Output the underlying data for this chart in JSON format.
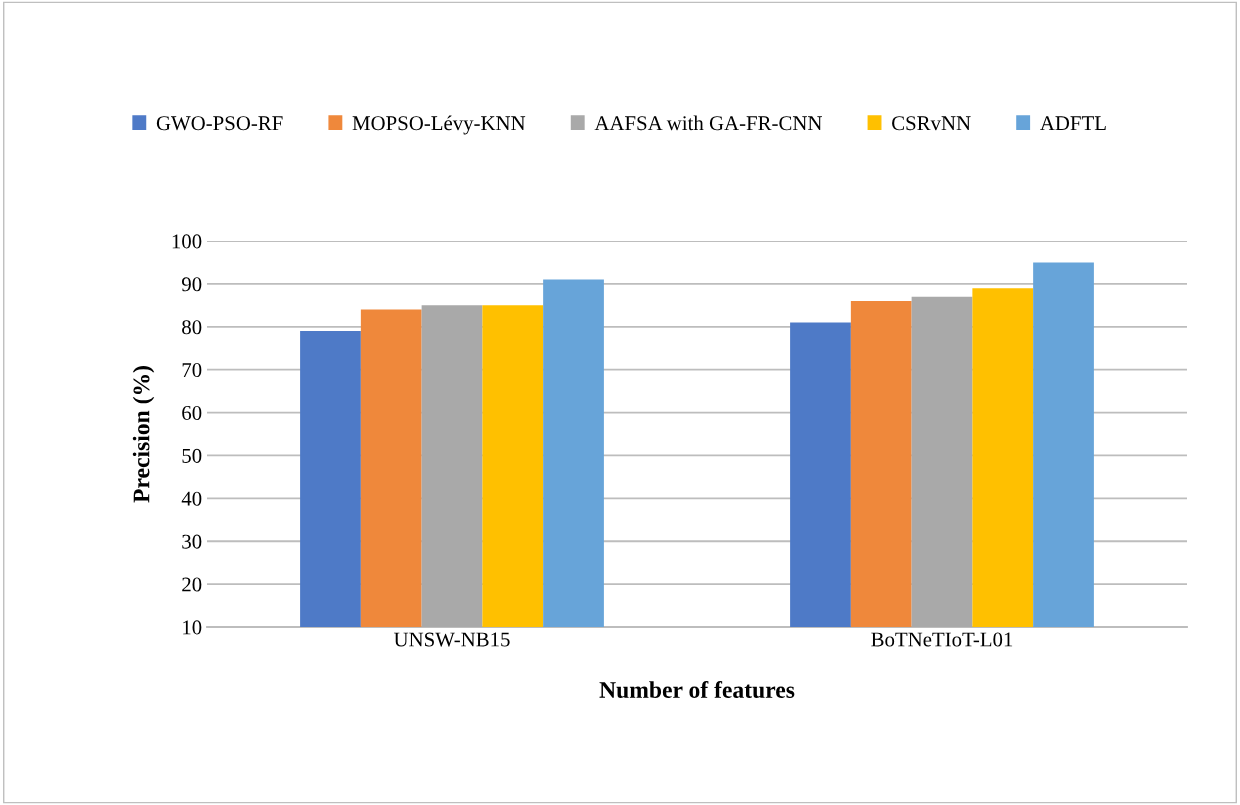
{
  "chart_data": {
    "type": "bar",
    "xlabel": "Number of features",
    "ylabel": "Precision (%)",
    "categories": [
      "UNSW-NB15",
      "BoTNeTIoT-L01"
    ],
    "series": [
      {
        "name": "GWO-PSO-RF",
        "color": "#4e7ac7",
        "values": [
          79,
          81
        ]
      },
      {
        "name": "MOPSO-Lévy-KNN",
        "color": "#ef883b",
        "values": [
          84,
          86
        ]
      },
      {
        "name": "AAFSA with GA-FR-CNN",
        "color": "#a9a9a9",
        "values": [
          85,
          87
        ]
      },
      {
        "name": "CSRvNN",
        "color": "#ffc000",
        "values": [
          85,
          89
        ]
      },
      {
        "name": "ADFTL",
        "color": "#67a4d9",
        "values": [
          91,
          95
        ]
      }
    ],
    "ylim": [
      10,
      100
    ],
    "yticks": [
      10,
      20,
      30,
      40,
      50,
      60,
      70,
      80,
      90,
      100
    ],
    "grid": "y",
    "legend": "top"
  }
}
